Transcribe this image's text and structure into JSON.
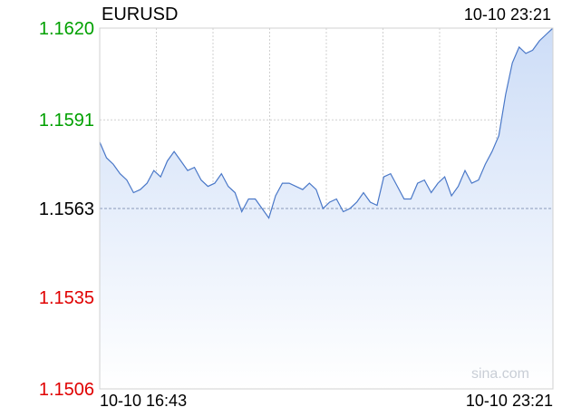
{
  "header": {
    "symbol": "EURUSD",
    "timestamp": "10-10 23:21"
  },
  "watermark": "sina.com",
  "colors": {
    "line": "#4a78c8",
    "area_top": "#cdddf7",
    "area_bottom": "#ffffff",
    "up": "#00a000",
    "down": "#e00000",
    "neutral": "#000000",
    "grid": "#d0d0d0",
    "ref_line": "#8a9bb8"
  },
  "chart_data": {
    "type": "area",
    "title": "EURUSD",
    "reference_value": 1.1563,
    "ylim": [
      1.1506,
      1.162
    ],
    "y_ticks": [
      {
        "label": "1.1620",
        "value": 1.162,
        "tone": "up"
      },
      {
        "label": "1.1591",
        "value": 1.1591,
        "tone": "up"
      },
      {
        "label": "1.1563",
        "value": 1.1563,
        "tone": "neutral"
      },
      {
        "label": "1.1535",
        "value": 1.1535,
        "tone": "down"
      },
      {
        "label": "1.1506",
        "value": 1.1506,
        "tone": "down"
      }
    ],
    "x_start_label": "10-10 16:43",
    "x_end_label": "10-10 23:21",
    "grid": true,
    "x": [
      "16:43",
      "16:49",
      "16:55",
      "17:01",
      "17:07",
      "17:13",
      "17:19",
      "17:25",
      "17:31",
      "17:37",
      "17:43",
      "17:49",
      "17:55",
      "18:01",
      "18:07",
      "18:13",
      "18:19",
      "18:25",
      "18:31",
      "18:37",
      "18:43",
      "18:49",
      "18:55",
      "19:01",
      "19:07",
      "19:13",
      "19:19",
      "19:25",
      "19:31",
      "19:37",
      "19:43",
      "19:49",
      "19:55",
      "20:01",
      "20:07",
      "20:13",
      "20:19",
      "20:25",
      "20:31",
      "20:37",
      "20:43",
      "20:49",
      "20:55",
      "21:01",
      "21:07",
      "21:13",
      "21:19",
      "21:25",
      "21:31",
      "21:37",
      "21:43",
      "21:49",
      "21:55",
      "22:01",
      "22:07",
      "22:13",
      "22:19",
      "22:25",
      "22:31",
      "22:37",
      "22:43",
      "22:49",
      "22:55",
      "23:01",
      "23:07",
      "23:13",
      "23:19",
      "23:21"
    ],
    "values": [
      1.1584,
      1.1579,
      1.1577,
      1.1574,
      1.1572,
      1.1568,
      1.1569,
      1.1571,
      1.1575,
      1.1573,
      1.1578,
      1.1581,
      1.1578,
      1.1575,
      1.1576,
      1.1572,
      1.157,
      1.1571,
      1.1574,
      1.157,
      1.1568,
      1.1562,
      1.1566,
      1.1566,
      1.1563,
      1.156,
      1.1567,
      1.1571,
      1.1571,
      1.157,
      1.1569,
      1.1571,
      1.1569,
      1.1563,
      1.1565,
      1.1566,
      1.1562,
      1.1563,
      1.1565,
      1.1568,
      1.1565,
      1.1564,
      1.1573,
      1.1574,
      1.157,
      1.1566,
      1.1566,
      1.1571,
      1.1572,
      1.1568,
      1.1571,
      1.1573,
      1.1567,
      1.157,
      1.1575,
      1.1571,
      1.1572,
      1.1577,
      1.1581,
      1.1586,
      1.1599,
      1.1609,
      1.1614,
      1.1612,
      1.1613,
      1.1616,
      1.1618,
      1.162
    ]
  }
}
